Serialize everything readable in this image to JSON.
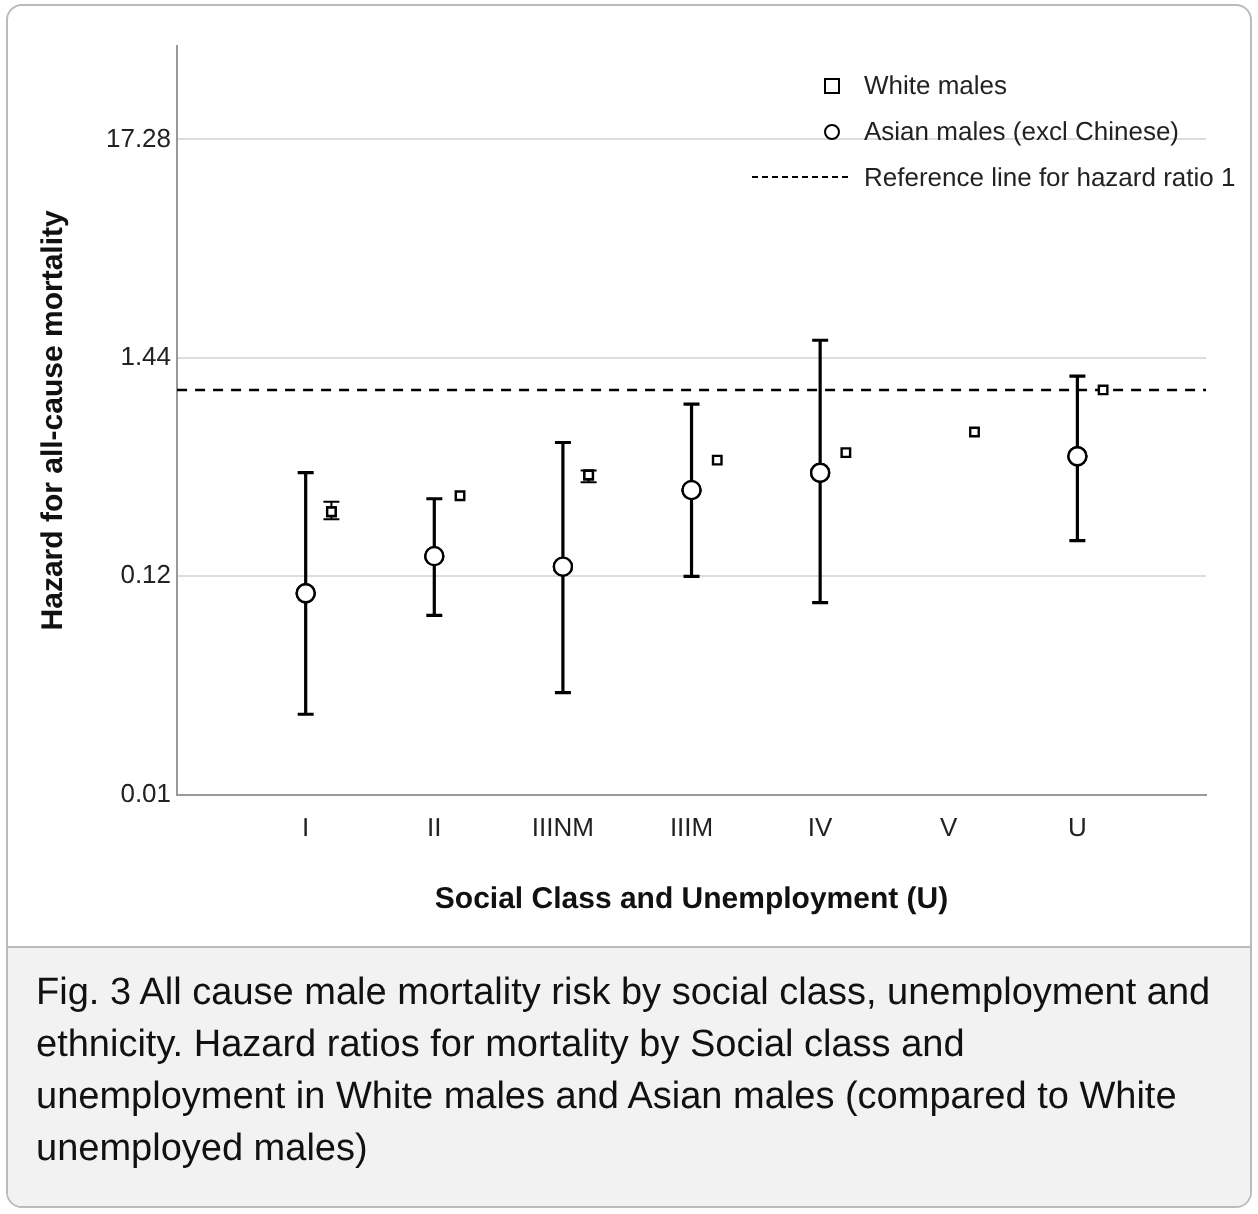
{
  "chart_data": {
    "type": "scatter",
    "xlabel": "Social Class and Unemployment (U)",
    "ylabel": "Hazard for all-cause mortality",
    "categories": [
      "I",
      "II",
      "IIINM",
      "IIIM",
      "IV",
      "V",
      "U"
    ],
    "series": [
      {
        "name": "White males",
        "color": "#000000",
        "marker": "square",
        "values": [
          0.25,
          0.3,
          0.38,
          0.45,
          0.49,
          0.62,
          1.0
        ],
        "errors": [
          [
            0.23,
            0.28
          ],
          null,
          [
            0.35,
            0.4
          ],
          null,
          null,
          null,
          null
        ]
      },
      {
        "name": "Asian males (excl Chinese)",
        "color": "#000000",
        "marker": "circle",
        "values": [
          0.099,
          0.151,
          0.134,
          0.32,
          0.39,
          null,
          0.47
        ],
        "errors": [
          [
            0.025,
            0.39
          ],
          [
            0.077,
            0.29
          ],
          [
            0.032,
            0.55
          ],
          [
            0.12,
            0.85
          ],
          [
            0.089,
            1.76
          ],
          null,
          [
            0.18,
            1.17
          ]
        ]
      }
    ],
    "log": "y",
    "ylim": [
      0.01,
      50
    ],
    "yticks": [
      0.01,
      0.12,
      1.44,
      17.28
    ],
    "grid": "y",
    "legend": "top right",
    "ref_lines": [
      {
        "axis": "y",
        "value": 1,
        "label": "Reference line for hazard ratio 1",
        "line_style": "dashed",
        "color": "#000000"
      }
    ],
    "annotations": [
      "Fig. 3 All cause male mortality risk by social class, unemployment and ethnicity. Hazard ratios for mortality by Social class and unemployment in White males and Asian males (compared to White unemployed males)"
    ]
  }
}
